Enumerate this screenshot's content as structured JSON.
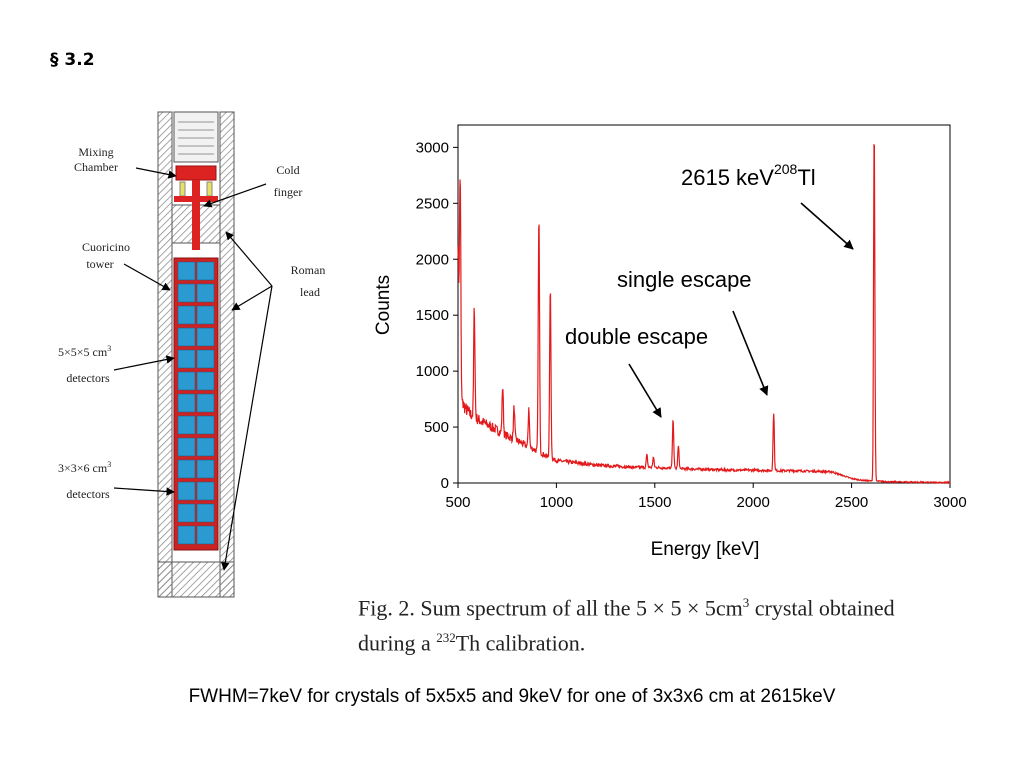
{
  "slide": {
    "heading": "§ 3.2",
    "footer": "FWHM=7keV for crystals of  5x5x5 and 9keV for one of 3x3x6 cm at 2615keV"
  },
  "diagram": {
    "labels": {
      "mixing": [
        "Mixing",
        "Chamber"
      ],
      "cold": [
        "Cold",
        "finger"
      ],
      "cuoricino": [
        "Cuoricino",
        "tower"
      ],
      "roman": [
        "Roman",
        "lead"
      ],
      "det5_line1": "5×5×5 cm",
      "det5_sup": "3",
      "det5_line2": "detectors",
      "det3_line1": "3×3×6 cm",
      "det3_sup": "3",
      "det3_line2": "detectors"
    },
    "colors": {
      "frame": "#cc2222",
      "crystal": "#2a9ad0",
      "lead": "#9a9a9a"
    }
  },
  "caption": {
    "lead": "Fig. 2.",
    "p1": " Sum spectrum of all the 5 × 5 × 5cm",
    "sup1": "3",
    "p2": " crystal obtained",
    "p3": "during a ",
    "sup2": "232",
    "p4": "Th calibration."
  },
  "chart_data": {
    "type": "line",
    "title": "",
    "xlabel": "Energy [keV]",
    "ylabel": "Counts",
    "xlim": [
      500,
      3000
    ],
    "ylim": [
      0,
      3200
    ],
    "xticks": [
      500,
      1000,
      1500,
      2000,
      2500,
      3000
    ],
    "yticks": [
      0,
      500,
      1000,
      1500,
      2000,
      2500,
      3000
    ],
    "grid": false,
    "color": "#e31a1c",
    "continuum": {
      "x": [
        500,
        510,
        520,
        540,
        560,
        600,
        650,
        700,
        750,
        800,
        850,
        900,
        950,
        1000,
        1100,
        1200,
        1300,
        1400,
        1500,
        1600,
        1700,
        1800,
        1900,
        2000,
        2100,
        2200,
        2300,
        2400,
        2450,
        2500,
        2550,
        2580,
        2650,
        2700,
        2800,
        2900,
        3000
      ],
      "y": [
        2200,
        900,
        720,
        660,
        620,
        570,
        520,
        470,
        420,
        380,
        330,
        290,
        240,
        200,
        180,
        160,
        150,
        140,
        140,
        130,
        125,
        120,
        115,
        115,
        110,
        110,
        105,
        100,
        70,
        40,
        25,
        20,
        15,
        10,
        8,
        5,
        5
      ]
    },
    "peaks": [
      {
        "x": 511,
        "y": 2780
      },
      {
        "x": 583,
        "y": 1570
      },
      {
        "x": 727,
        "y": 870
      },
      {
        "x": 785,
        "y": 680
      },
      {
        "x": 860,
        "y": 680
      },
      {
        "x": 911,
        "y": 2400
      },
      {
        "x": 969,
        "y": 1750
      },
      {
        "x": 1460,
        "y": 250
      },
      {
        "x": 1493,
        "y": 230
      },
      {
        "x": 1593,
        "y": 570
      },
      {
        "x": 1620,
        "y": 330
      },
      {
        "x": 2104,
        "y": 630
      },
      {
        "x": 2615,
        "y": 3170
      }
    ],
    "annotations": [
      {
        "text": "2615 keV",
        "sup": "208",
        "suffix": "Tl"
      },
      {
        "text": "single escape"
      },
      {
        "text": "double escape"
      }
    ]
  }
}
